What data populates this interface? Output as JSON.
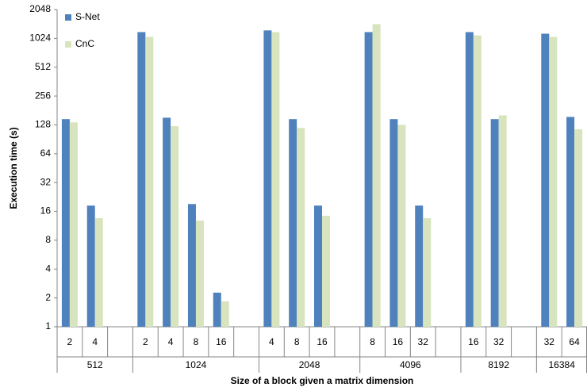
{
  "chart_data": {
    "type": "bar",
    "x_label": "Size of a block given a matrix dimension",
    "y_label": "Execution time (s)",
    "log_scale": "y",
    "log_base": 2,
    "legend": "top-left",
    "groups": [
      {
        "label": "512",
        "categories": [
          "2",
          "4",
          null
        ]
      },
      {
        "label": "1024",
        "categories": [
          "2",
          "4",
          "8",
          "16",
          null
        ]
      },
      {
        "label": "2048",
        "categories": [
          "4",
          "8",
          "16",
          null
        ]
      },
      {
        "label": "4096",
        "categories": [
          "8",
          "16",
          "32",
          null
        ]
      },
      {
        "label": "8192",
        "categories": [
          "16",
          "32",
          null
        ]
      },
      {
        "label": "16384",
        "categories": [
          "32",
          "64"
        ]
      }
    ],
    "series": [
      {
        "name": "S-Net",
        "color": "#4f81bd",
        "values": [
          147,
          18.4,
          null,
          1190,
          152,
          19.1,
          2.27,
          null,
          1240,
          147,
          18.4,
          null,
          1190,
          147,
          18.4,
          null,
          1190,
          147,
          null,
          1145,
          155
        ]
      },
      {
        "name": "CnC",
        "color": "#d7e4bd",
        "values": [
          136,
          13.6,
          null,
          1060,
          124,
          12.8,
          1.84,
          null,
          1190,
          119,
          14.4,
          null,
          1440,
          128,
          13.6,
          null,
          1100,
          161,
          null,
          1060,
          115
        ]
      }
    ],
    "ylim": [
      1,
      2048
    ],
    "yticks": [
      1,
      2,
      4,
      8,
      16,
      32,
      64,
      128,
      256,
      512,
      1024,
      2048
    ]
  }
}
